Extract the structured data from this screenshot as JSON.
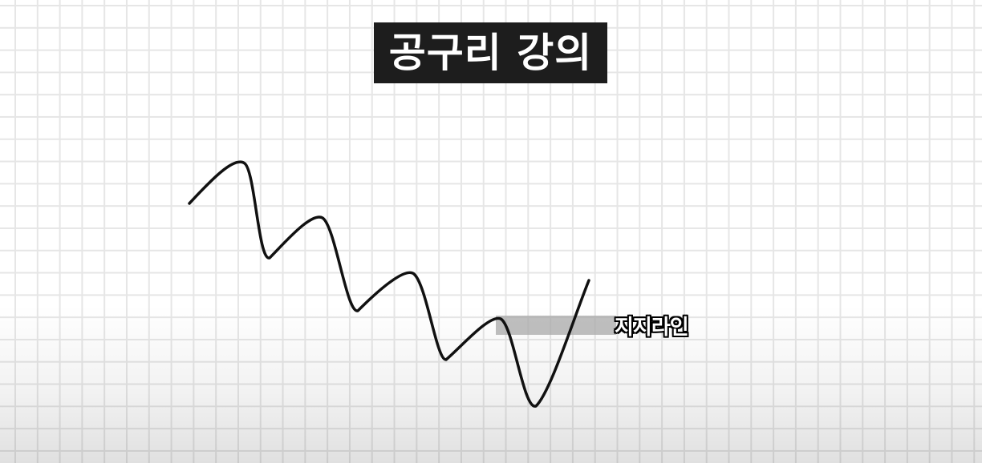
{
  "title": "공구리 강의",
  "support_label": "지지라인",
  "colors": {
    "title_background": "#1d1d1d",
    "title_text": "#ffffff",
    "price_line": "#111111",
    "support_band": "#a8a8a8",
    "grid": "#e6e6e6"
  }
}
